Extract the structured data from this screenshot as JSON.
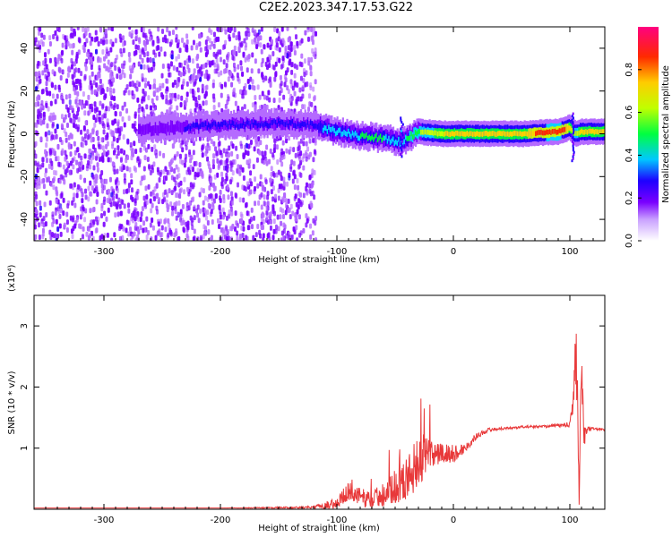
{
  "title": "C2E2.2023.347.17.53.G22",
  "chart_data": [
    {
      "type": "heatmap",
      "xlabel": "Height of straight line (km)",
      "ylabel": "Frequency (Hz)",
      "xlim": [
        -360,
        130
      ],
      "ylim": [
        -50,
        50
      ],
      "xticks": [
        -300,
        -200,
        -100,
        0,
        100
      ],
      "yticks": [
        -40,
        -20,
        0,
        20,
        40
      ],
      "colorbar": {
        "label": "Normalized spectral amplitude",
        "range": [
          0,
          1
        ],
        "ticks": [
          "0.0",
          "0.2",
          "0.4",
          "0.6",
          "0.8"
        ],
        "colormap": [
          "#ffffff",
          "#b56bff",
          "#7a00ff",
          "#2200ff",
          "#00d8ff",
          "#00ff3c",
          "#c8ff00",
          "#ffd200",
          "#ff2a00",
          "#ff007a"
        ]
      },
      "noise_region_km": [
        -360,
        -118
      ],
      "signal_track": {
        "x": [
          -270,
          -200,
          -150,
          -120,
          -100,
          -80,
          -60,
          -45,
          -30,
          -10,
          0,
          30,
          60,
          90,
          100,
          105,
          110,
          130
        ],
        "freq_hz": [
          2,
          4,
          5,
          4,
          1,
          -1,
          -2,
          -4,
          1,
          0,
          0,
          0,
          0,
          1,
          3,
          0,
          1,
          1
        ],
        "amplitude": [
          0.25,
          0.3,
          0.3,
          0.35,
          0.45,
          0.5,
          0.5,
          0.45,
          0.6,
          0.7,
          0.8,
          0.75,
          0.8,
          0.9,
          0.8,
          0.6,
          0.75,
          0.75
        ]
      },
      "grid": false
    },
    {
      "type": "line",
      "xlabel": "Height of straight line (km)",
      "ylabel": "SNR (10 * v/v)",
      "y_multiplier": "(x10⁴)",
      "xlim": [
        -360,
        130
      ],
      "ylim": [
        0,
        3.5
      ],
      "xticks": [
        -300,
        -200,
        -100,
        0,
        100
      ],
      "yticks": [
        1,
        2,
        3
      ],
      "color": "#e8393a",
      "grid": false,
      "series": [
        {
          "x": [
            -360,
            -300,
            -200,
            -120,
            -100,
            -90,
            -80,
            -70,
            -60,
            -50,
            -40,
            -30,
            -20,
            -10,
            0,
            10,
            20,
            30,
            40,
            50,
            60,
            70,
            80,
            90,
            100,
            103,
            105,
            107,
            108,
            110,
            112,
            115,
            120,
            130
          ],
          "values": [
            0.02,
            0.02,
            0.02,
            0.03,
            0.1,
            0.3,
            0.2,
            0.15,
            0.25,
            0.35,
            0.5,
            0.8,
            0.9,
            0.9,
            0.9,
            1.0,
            1.2,
            1.3,
            1.32,
            1.33,
            1.35,
            1.35,
            1.36,
            1.37,
            1.38,
            1.8,
            2.7,
            1.5,
            0.2,
            2.4,
            1.2,
            1.3,
            1.32,
            1.3
          ],
          "noise": [
            0.0,
            0.0,
            0.0,
            0.02,
            0.1,
            0.15,
            0.15,
            0.15,
            0.2,
            0.25,
            0.35,
            0.45,
            0.3,
            0.2,
            0.15,
            0.08,
            0.05,
            0.03,
            0.02,
            0.02,
            0.02,
            0.02,
            0.02,
            0.03,
            0.05,
            0.2,
            0.6,
            0.4,
            0.2,
            0.5,
            0.2,
            0.05,
            0.02,
            0.02
          ]
        }
      ]
    }
  ]
}
